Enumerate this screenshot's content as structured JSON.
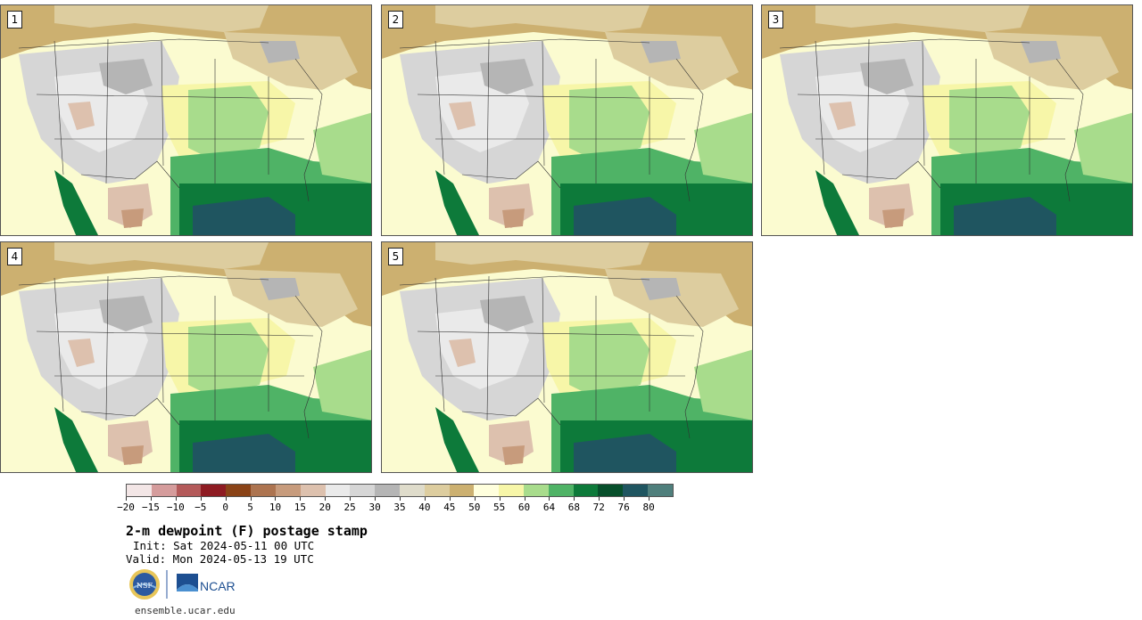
{
  "panels": [
    {
      "label": "1"
    },
    {
      "label": "2"
    },
    {
      "label": "3"
    },
    {
      "label": "4"
    },
    {
      "label": "5"
    }
  ],
  "colorbar": {
    "colors": [
      "#f3e6e6",
      "#d59c9c",
      "#b45a5a",
      "#8e1b22",
      "#8a4317",
      "#ad7450",
      "#c79b7c",
      "#ddc1ae",
      "#eaeaea",
      "#d6d6d6",
      "#b5b5b5",
      "#dfdccb",
      "#ddcd9f",
      "#ccb070",
      "#ffffdd",
      "#f7f6a8",
      "#a8dc8c",
      "#4fb366",
      "#0d7a3a",
      "#074f2b",
      "#1f5560",
      "#4f7f7c"
    ],
    "tick_labels": [
      "−20",
      "−15",
      "−10",
      "−5",
      "0",
      "5",
      "10",
      "15",
      "20",
      "25",
      "30",
      "35",
      "40",
      "45",
      "50",
      "55",
      "60",
      "64",
      "68",
      "72",
      "76",
      "80"
    ]
  },
  "title": "2-m dewpoint (F) postage stamp",
  "init": "Init: Sat 2024-05-11 00 UTC",
  "valid": "Valid: Mon 2024-05-13 19 UTC",
  "logos": {
    "nsf": "NSF",
    "ncar": "NCAR"
  },
  "url": "ensemble.ucar.edu"
}
